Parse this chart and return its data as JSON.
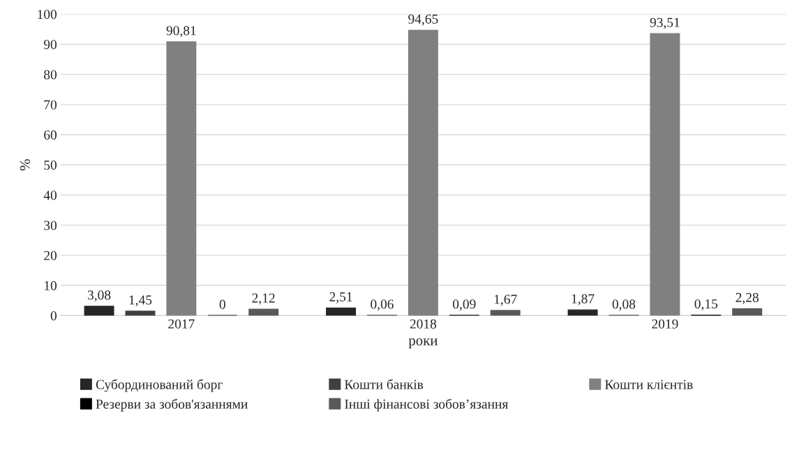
{
  "chart_data": {
    "type": "bar",
    "xlabel": "роки",
    "ylabel": "%",
    "categories": [
      "2017",
      "2018",
      "2019"
    ],
    "series": [
      {
        "name": "Субординований борг",
        "color": "#262626",
        "values": [
          3.08,
          2.51,
          1.87
        ],
        "value_labels": [
          "3,08",
          "2,51",
          "1,87"
        ]
      },
      {
        "name": "Кошти банків",
        "color": "#404040",
        "values": [
          1.45,
          0.06,
          0.08
        ],
        "value_labels": [
          "1,45",
          "0,06",
          "0,08"
        ]
      },
      {
        "name": "Кошти клієнтів",
        "color": "#808080",
        "values": [
          90.81,
          94.65,
          93.51
        ],
        "value_labels": [
          "90,81",
          "94,65",
          "93,51"
        ]
      },
      {
        "name": "Резерви за зобов'язаннями",
        "color": "#000000",
        "values": [
          0,
          0.09,
          0.15
        ],
        "value_labels": [
          "0",
          "0,09",
          "0,15"
        ]
      },
      {
        "name": "Інші фінансові зобов’язання",
        "color": "#595959",
        "values": [
          2.12,
          1.67,
          2.28
        ],
        "value_labels": [
          "2,12",
          "1,67",
          "2,28"
        ]
      }
    ],
    "ylim": [
      0,
      100
    ],
    "yticks": [
      0,
      10,
      20,
      30,
      40,
      50,
      60,
      70,
      80,
      90,
      100
    ],
    "grid": "y",
    "legend": "bottom"
  }
}
